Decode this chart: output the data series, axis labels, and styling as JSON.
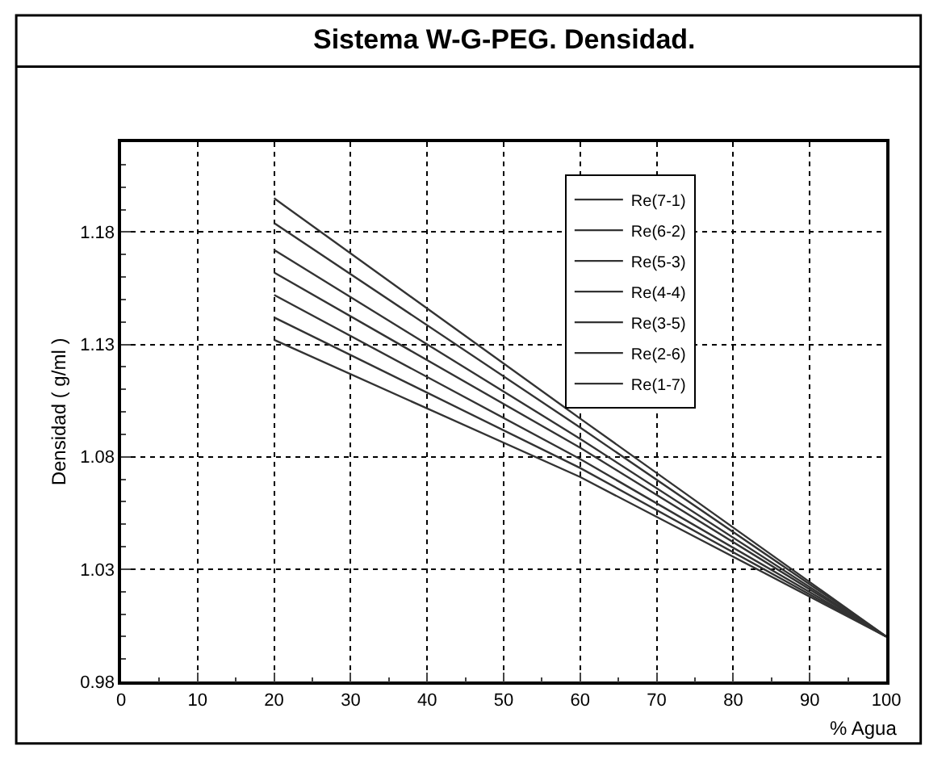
{
  "chart_data": {
    "type": "line",
    "title": "Sistema W-G-PEG. Densidad.",
    "xlabel": "% Agua",
    "ylabel": "Densidad ( g/ml )",
    "x": [
      20,
      60,
      100
    ],
    "series": [
      {
        "name": "Re(7-1)",
        "color": "#333333",
        "values": [
          1.195,
          1.097,
          1.0
        ]
      },
      {
        "name": "Re(6-2)",
        "color": "#333333",
        "values": [
          1.184,
          1.093,
          1.0
        ]
      },
      {
        "name": "Re(5-3)",
        "color": "#333333",
        "values": [
          1.172,
          1.088,
          1.0
        ]
      },
      {
        "name": "Re(4-4)",
        "color": "#333333",
        "values": [
          1.162,
          1.084,
          1.0
        ]
      },
      {
        "name": "Re(3-5)",
        "color": "#333333",
        "values": [
          1.152,
          1.079,
          1.0
        ]
      },
      {
        "name": "Re(2-6)",
        "color": "#333333",
        "values": [
          1.142,
          1.075,
          1.0
        ]
      },
      {
        "name": "Re(1-7)",
        "color": "#333333",
        "values": [
          1.132,
          1.071,
          1.0
        ]
      }
    ],
    "xlim": [
      0,
      100
    ],
    "xticks": [
      0,
      10,
      20,
      30,
      40,
      50,
      60,
      70,
      80,
      90,
      100
    ],
    "ylim": [
      0.98,
      1.22
    ],
    "yticks": [
      0.98,
      1.03,
      1.08,
      1.13,
      1.18
    ],
    "grid": true,
    "legend": "top right",
    "marker": "none",
    "line_style": "solid"
  }
}
